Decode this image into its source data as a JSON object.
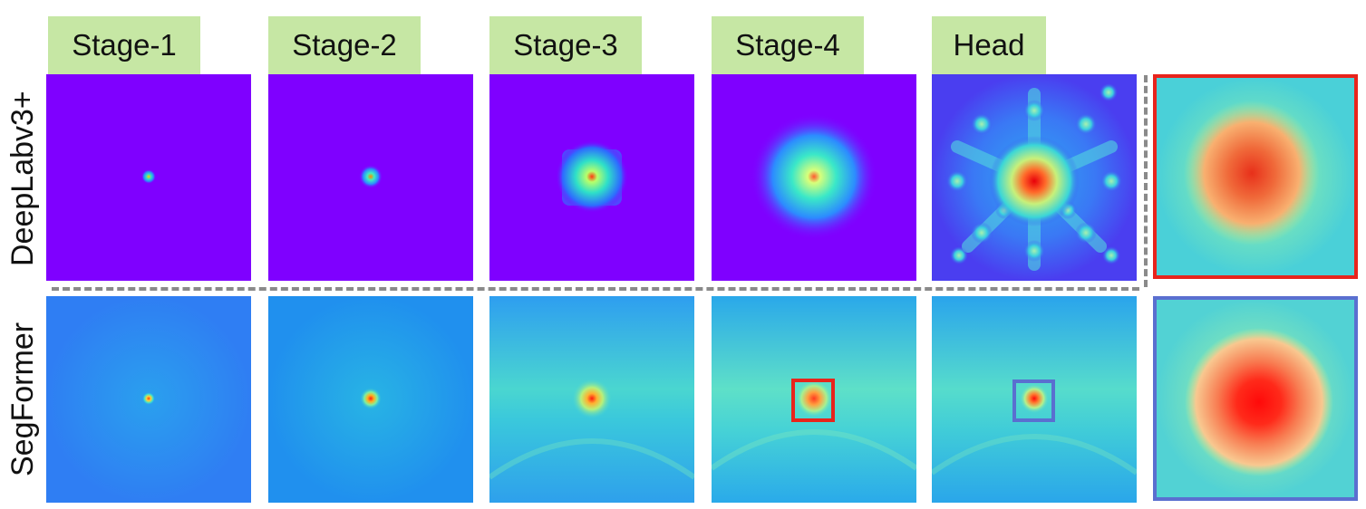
{
  "columns": [
    "Stage-1",
    "Stage-2",
    "Stage-3",
    "Stage-4",
    "Head"
  ],
  "rows": [
    "DeepLabv3+",
    "SegFormer"
  ],
  "colors": {
    "label_bg": "#c6e7a4",
    "deeplab_background": "#7f00ff",
    "segformer_background": "#1fb2e8",
    "highlight_red": "#e8241c",
    "highlight_blue": "#5a6fd0",
    "divider": "#8a8a8a"
  }
}
